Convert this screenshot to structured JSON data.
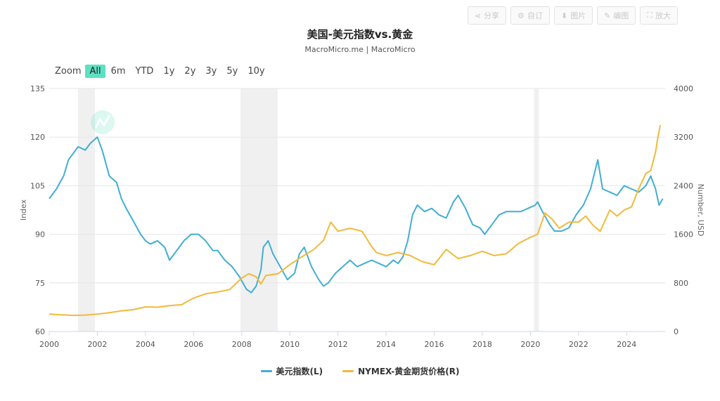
{
  "toolbar": [
    {
      "icon": "share-icon",
      "glyph": "⋖",
      "label": "分享"
    },
    {
      "icon": "settings-icon",
      "glyph": "⚙",
      "label": "自订"
    },
    {
      "icon": "download-icon",
      "glyph": "⬇",
      "label": "图片"
    },
    {
      "icon": "pencil-icon",
      "glyph": "✎",
      "label": "编图"
    },
    {
      "icon": "expand-icon",
      "glyph": "⛶",
      "label": "放大"
    }
  ],
  "zoom": {
    "label": "Zoom",
    "options": [
      "All",
      "6m",
      "YTD",
      "1y",
      "2y",
      "3y",
      "5y",
      "10y"
    ],
    "active": "All"
  },
  "watermark": {
    "text": "MacroMicro"
  },
  "chart_data": {
    "type": "line",
    "title": "美国-美元指数vs.黄金",
    "subtitle": "MacroMicro.me | MacroMicro",
    "x_ticks": [
      "2000",
      "2002",
      "2004",
      "2006",
      "2008",
      "2010",
      "2012",
      "2014",
      "2016",
      "2018",
      "2020",
      "2022",
      "2024"
    ],
    "xlim": [
      2000,
      2025.6
    ],
    "left_axis": {
      "label": "Index",
      "ylim": [
        60,
        135
      ],
      "ticks": [
        60,
        75,
        90,
        105,
        120,
        135
      ]
    },
    "right_axis": {
      "label": "Number, USD",
      "ylim": [
        0,
        4000
      ],
      "ticks": [
        0,
        800,
        1600,
        2400,
        3200,
        4000
      ]
    },
    "recession_bands": [
      [
        2001.2,
        2001.9
      ],
      [
        2007.95,
        2009.5
      ],
      [
        2020.15,
        2020.35
      ]
    ],
    "grid": true,
    "legend_position": "bottom",
    "colors": {
      "dxy": "#41aed3",
      "gold": "#f2b93b",
      "band": "#f0f0f0",
      "grid": "#e6e6e6"
    },
    "series": [
      {
        "name": "美元指数(L)",
        "axis": "left",
        "x": [
          2000.0,
          2000.3,
          2000.6,
          2000.8,
          2001.0,
          2001.2,
          2001.5,
          2001.7,
          2002.0,
          2002.2,
          2002.5,
          2002.8,
          2003.0,
          2003.2,
          2003.5,
          2003.8,
          2004.0,
          2004.2,
          2004.5,
          2004.8,
          2005.0,
          2005.3,
          2005.6,
          2005.9,
          2006.2,
          2006.5,
          2006.8,
          2007.0,
          2007.3,
          2007.6,
          2007.9,
          2008.2,
          2008.4,
          2008.6,
          2008.8,
          2008.9,
          2009.1,
          2009.3,
          2009.6,
          2009.9,
          2010.2,
          2010.4,
          2010.6,
          2010.9,
          2011.2,
          2011.4,
          2011.6,
          2011.9,
          2012.2,
          2012.5,
          2012.8,
          2013.1,
          2013.4,
          2013.7,
          2014.0,
          2014.3,
          2014.5,
          2014.7,
          2014.9,
          2015.1,
          2015.3,
          2015.6,
          2015.9,
          2016.2,
          2016.5,
          2016.8,
          2017.0,
          2017.3,
          2017.6,
          2017.9,
          2018.1,
          2018.4,
          2018.7,
          2019.0,
          2019.3,
          2019.6,
          2019.9,
          2020.2,
          2020.3,
          2020.5,
          2020.8,
          2021.0,
          2021.3,
          2021.6,
          2021.9,
          2022.2,
          2022.5,
          2022.8,
          2023.0,
          2023.3,
          2023.6,
          2023.9,
          2024.2,
          2024.5,
          2024.8,
          2025.0,
          2025.2,
          2025.35,
          2025.5
        ],
        "values": [
          101,
          104,
          108,
          113,
          115,
          117,
          116,
          118,
          120,
          116,
          108,
          106,
          101,
          98,
          94,
          90,
          88,
          87,
          88,
          86,
          82,
          85,
          88,
          90,
          90,
          88,
          85,
          85,
          82,
          80,
          77,
          73,
          72,
          74,
          79,
          86,
          88,
          84,
          80,
          76,
          78,
          84,
          86,
          80,
          76,
          74,
          75,
          78,
          80,
          82,
          80,
          81,
          82,
          81,
          80,
          82,
          81,
          83,
          88,
          96,
          99,
          97,
          98,
          96,
          95,
          100,
          102,
          98,
          93,
          92,
          90,
          93,
          96,
          97,
          97,
          97,
          98,
          99,
          100,
          97,
          93,
          91,
          91,
          92,
          96,
          99,
          104,
          113,
          104,
          103,
          102,
          105,
          104,
          103,
          105,
          108,
          104,
          99,
          101
        ]
      },
      {
        "name": "NYMEX-黄金期货价格(R)",
        "axis": "right",
        "x": [
          2000.0,
          2000.5,
          2001.0,
          2001.5,
          2002.0,
          2002.5,
          2003.0,
          2003.5,
          2004.0,
          2004.5,
          2005.0,
          2005.5,
          2006.0,
          2006.5,
          2007.0,
          2007.5,
          2008.0,
          2008.3,
          2008.6,
          2008.8,
          2009.0,
          2009.5,
          2010.0,
          2010.5,
          2011.0,
          2011.4,
          2011.7,
          2012.0,
          2012.5,
          2013.0,
          2013.4,
          2013.6,
          2014.0,
          2014.5,
          2015.0,
          2015.5,
          2016.0,
          2016.5,
          2017.0,
          2017.5,
          2018.0,
          2018.5,
          2019.0,
          2019.5,
          2020.0,
          2020.3,
          2020.6,
          2020.9,
          2021.2,
          2021.6,
          2022.0,
          2022.3,
          2022.6,
          2022.9,
          2023.3,
          2023.6,
          2023.9,
          2024.2,
          2024.5,
          2024.8,
          2025.0,
          2025.2,
          2025.3,
          2025.4
        ],
        "values": [
          285,
          275,
          265,
          270,
          285,
          310,
          340,
          360,
          405,
          400,
          425,
          440,
          550,
          620,
          650,
          690,
          880,
          950,
          900,
          780,
          920,
          950,
          1100,
          1230,
          1350,
          1500,
          1800,
          1650,
          1700,
          1650,
          1400,
          1300,
          1250,
          1300,
          1250,
          1150,
          1100,
          1350,
          1200,
          1250,
          1320,
          1250,
          1280,
          1450,
          1550,
          1600,
          1950,
          1850,
          1700,
          1800,
          1800,
          1900,
          1750,
          1650,
          2000,
          1900,
          2000,
          2050,
          2350,
          2600,
          2650,
          2950,
          3200,
          3400
        ]
      }
    ]
  }
}
